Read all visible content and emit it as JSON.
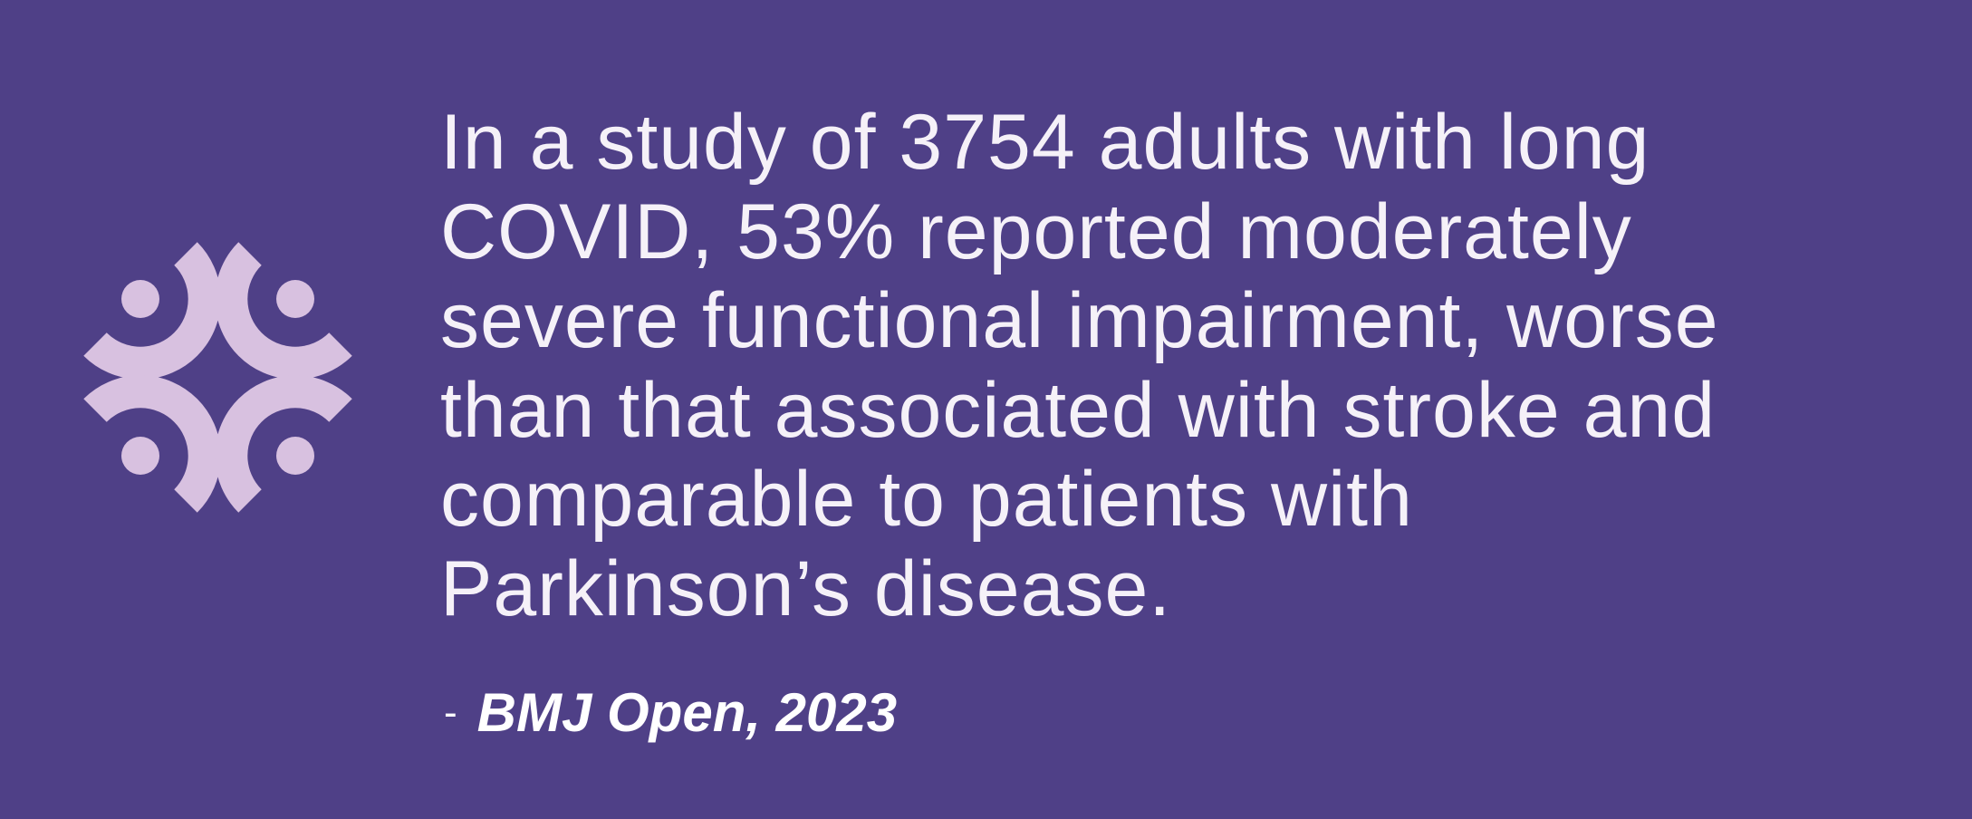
{
  "quote": {
    "lines": [
      "In a study of 3754 adults with long",
      "COVID, 53% reported moderately",
      "severe functional impairment, worse",
      "than that associated with stroke and",
      "comparable to patients with",
      "Parkinson’s disease."
    ]
  },
  "citation": {
    "dash": "-",
    "source": "BMJ Open, 2023"
  }
}
